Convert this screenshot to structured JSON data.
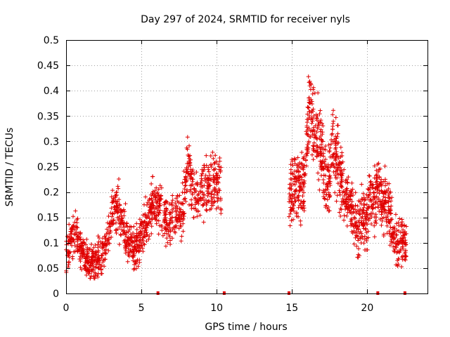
{
  "chart_data": {
    "type": "scatter",
    "title": "Day 297 of 2024, SRMTID for receiver nyls",
    "xlabel": "GPS time / hours",
    "ylabel": "SRMTID / TECUs",
    "xlim": [
      0,
      24
    ],
    "ylim": [
      0,
      0.5
    ],
    "x_ticks": [
      0,
      5,
      10,
      15,
      20
    ],
    "x_tick_labels": [
      "0",
      "5",
      "10",
      "15",
      "20"
    ],
    "y_ticks": [
      0,
      0.05,
      0.1,
      0.15,
      0.2,
      0.25,
      0.3,
      0.35,
      0.4,
      0.45,
      0.5
    ],
    "y_tick_labels": [
      "0",
      "0.05",
      "0.1",
      "0.15",
      "0.2",
      "0.25",
      "0.3",
      "0.35",
      "0.4",
      "0.45",
      "0.5"
    ],
    "grid": true,
    "marker": "+",
    "color": "#e00000",
    "trend_summary": {
      "x": [
        0.0,
        0.3,
        0.6,
        1.0,
        1.3,
        1.6,
        2.0,
        2.4,
        2.8,
        3.1,
        3.4,
        3.8,
        4.2,
        4.6,
        5.0,
        5.4,
        5.8,
        6.2,
        6.6,
        7.0,
        7.4,
        7.8,
        8.1,
        8.4,
        8.8,
        9.2,
        9.6,
        10.0,
        10.3
      ],
      "y": [
        0.08,
        0.1,
        0.12,
        0.085,
        0.06,
        0.055,
        0.065,
        0.08,
        0.11,
        0.16,
        0.18,
        0.13,
        0.1,
        0.09,
        0.11,
        0.14,
        0.19,
        0.17,
        0.15,
        0.14,
        0.16,
        0.17,
        0.25,
        0.21,
        0.19,
        0.2,
        0.22,
        0.23,
        0.2
      ],
      "x2": [
        14.8,
        15.0,
        15.2,
        15.5,
        15.8,
        16.0,
        16.2,
        16.5,
        16.8,
        17.1,
        17.4,
        17.7,
        18.0,
        18.3,
        18.6,
        19.0,
        19.3,
        19.6,
        19.9,
        20.2,
        20.5,
        20.8,
        21.1,
        21.4,
        21.7,
        22.0,
        22.3,
        22.6
      ],
      "y2": [
        0.18,
        0.2,
        0.22,
        0.2,
        0.21,
        0.3,
        0.38,
        0.32,
        0.3,
        0.25,
        0.21,
        0.3,
        0.26,
        0.22,
        0.18,
        0.17,
        0.12,
        0.15,
        0.14,
        0.2,
        0.18,
        0.22,
        0.18,
        0.17,
        0.12,
        0.1,
        0.11,
        0.09
      ]
    },
    "baseline_markers_x": [
      6.1,
      10.5,
      14.8,
      20.7,
      22.5
    ]
  }
}
